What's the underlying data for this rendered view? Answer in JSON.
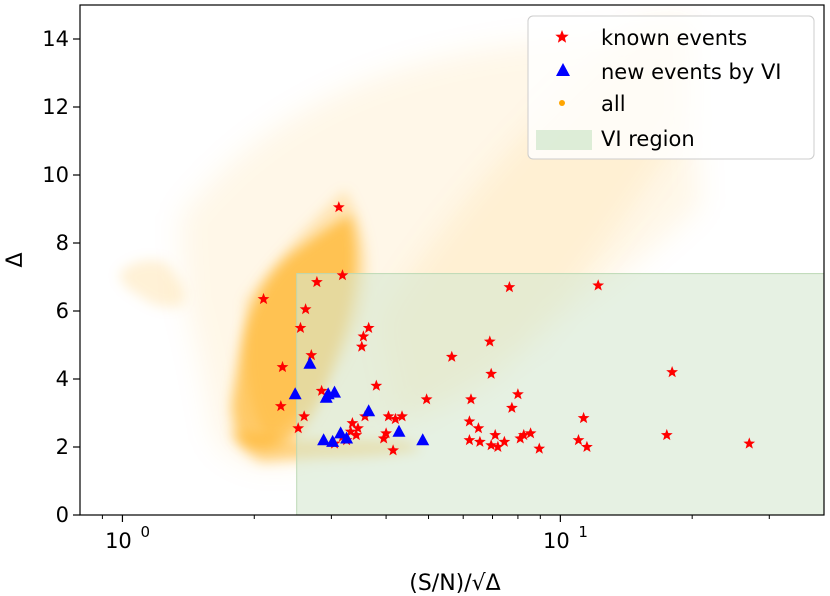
{
  "chart_data": {
    "type": "scatter",
    "title": "",
    "xlabel": "(S/N)/√Δ",
    "ylabel": "Δ",
    "xscale": "log",
    "xlim": [
      0.8,
      40
    ],
    "ylim": [
      0,
      15
    ],
    "x_ticks": [
      {
        "value": 1,
        "base": "10",
        "exp": "0"
      },
      {
        "value": 10,
        "base": "10",
        "exp": "1"
      }
    ],
    "y_ticks": [
      0,
      2,
      4,
      6,
      8,
      10,
      12,
      14
    ],
    "grid": false,
    "legend": {
      "placement": "top-right",
      "entries": [
        {
          "label": "known events",
          "marker": "star",
          "color": "#ff0000"
        },
        {
          "label": "new events by VI",
          "marker": "triangle",
          "color": "#0000ff"
        },
        {
          "label": "all",
          "marker": "dot",
          "color": "#ffa500"
        },
        {
          "label": "VI region",
          "marker": "rect",
          "color": "#d5e8d0"
        }
      ]
    },
    "vi_region": {
      "x_min": 2.5,
      "x_max": 40,
      "y_min": 0,
      "y_max": 7.1,
      "color": "#d5e8d0"
    },
    "series": [
      {
        "name": "known events",
        "marker": "star",
        "color": "#ff0000",
        "points": [
          [
            3.12,
            9.05
          ],
          [
            2.1,
            6.35
          ],
          [
            2.78,
            6.85
          ],
          [
            3.18,
            7.05
          ],
          [
            2.62,
            6.05
          ],
          [
            2.55,
            5.5
          ],
          [
            3.65,
            5.5
          ],
          [
            3.55,
            5.25
          ],
          [
            3.52,
            4.95
          ],
          [
            2.7,
            4.7
          ],
          [
            2.32,
            4.35
          ],
          [
            2.85,
            3.65
          ],
          [
            3.8,
            3.8
          ],
          [
            2.3,
            3.2
          ],
          [
            2.6,
            2.9
          ],
          [
            2.52,
            2.55
          ],
          [
            3.35,
            2.7
          ],
          [
            3.32,
            2.45
          ],
          [
            3.18,
            2.3
          ],
          [
            3.05,
            2.1
          ],
          [
            3.25,
            2.2
          ],
          [
            3.42,
            2.35
          ],
          [
            3.45,
            2.55
          ],
          [
            3.58,
            2.9
          ],
          [
            4.05,
            2.9
          ],
          [
            4.2,
            2.82
          ],
          [
            4.35,
            2.9
          ],
          [
            4.0,
            2.4
          ],
          [
            3.95,
            2.25
          ],
          [
            4.15,
            1.9
          ],
          [
            4.95,
            3.4
          ],
          [
            5.65,
            4.65
          ],
          [
            6.9,
            5.1
          ],
          [
            7.65,
            6.7
          ],
          [
            6.95,
            4.15
          ],
          [
            6.2,
            2.75
          ],
          [
            6.5,
            2.55
          ],
          [
            6.25,
            3.4
          ],
          [
            6.2,
            2.2
          ],
          [
            6.55,
            2.15
          ],
          [
            6.95,
            2.05
          ],
          [
            7.1,
            2.35
          ],
          [
            7.2,
            2.0
          ],
          [
            7.45,
            2.15
          ],
          [
            7.75,
            3.15
          ],
          [
            8.0,
            3.55
          ],
          [
            8.1,
            2.25
          ],
          [
            8.25,
            2.35
          ],
          [
            8.55,
            2.4
          ],
          [
            8.95,
            1.95
          ],
          [
            11.0,
            2.2
          ],
          [
            11.3,
            2.85
          ],
          [
            11.5,
            2.0
          ],
          [
            12.2,
            6.75
          ],
          [
            17.5,
            2.35
          ],
          [
            18.0,
            4.2
          ],
          [
            27.0,
            2.1
          ]
        ]
      },
      {
        "name": "new events by VI",
        "marker": "triangle",
        "color": "#0000ff",
        "points": [
          [
            2.68,
            4.45
          ],
          [
            2.48,
            3.55
          ],
          [
            2.92,
            3.45
          ],
          [
            3.05,
            3.6
          ],
          [
            2.95,
            3.55
          ],
          [
            3.65,
            3.05
          ],
          [
            3.15,
            2.4
          ],
          [
            3.25,
            2.25
          ],
          [
            2.88,
            2.2
          ],
          [
            3.02,
            2.15
          ],
          [
            4.28,
            2.45
          ],
          [
            4.85,
            2.2
          ]
        ]
      }
    ],
    "all_density": {
      "name": "all",
      "color": "#ffa500",
      "note": "dense cloud of faint orange points showing the full sample"
    }
  }
}
